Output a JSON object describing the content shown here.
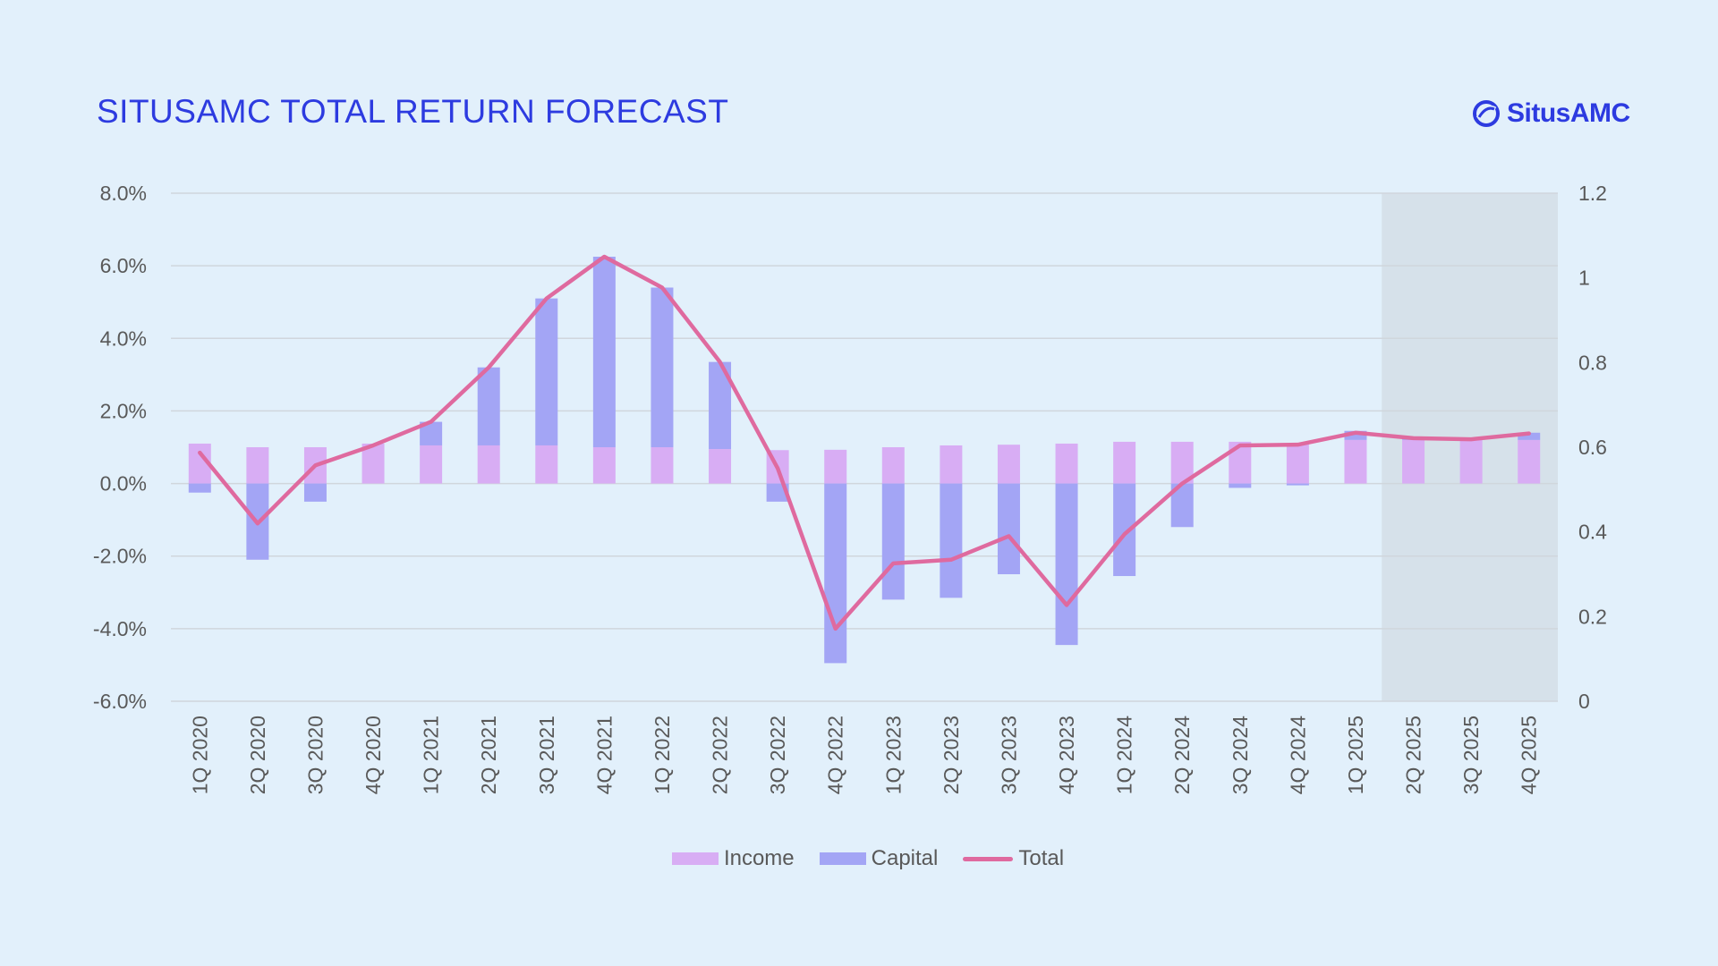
{
  "title": "SITUSAMC TOTAL RETURN FORECAST",
  "logo": {
    "text": "SitusAMC",
    "icon": "situsamc-logo-icon"
  },
  "colors": {
    "background": "#e2f0fb",
    "income": "#d8adf4",
    "capital": "#a3a5f5",
    "total": "#df6a9f",
    "forecast_shade": "#d6e1ea",
    "gridline": "#d0d6dc",
    "title": "#2d3be0"
  },
  "legend": [
    {
      "key": "income",
      "label": "Income"
    },
    {
      "key": "capital",
      "label": "Capital"
    },
    {
      "key": "total",
      "label": "Total"
    }
  ],
  "chart_data": {
    "type": "bar",
    "title": "SITUSAMC TOTAL RETURN FORECAST",
    "xlabel": "",
    "ylabel": "",
    "categories": [
      "1Q 2020",
      "2Q 2020",
      "3Q 2020",
      "4Q 2020",
      "1Q 2021",
      "2Q 2021",
      "3Q 2021",
      "4Q 2021",
      "1Q 2022",
      "2Q 2022",
      "3Q 2022",
      "4Q 2022",
      "1Q 2023",
      "2Q 2023",
      "3Q 2023",
      "4Q 2023",
      "1Q 2024",
      "2Q 2024",
      "3Q 2024",
      "4Q 2024",
      "1Q 2025",
      "2Q 2025",
      "3Q 2025",
      "4Q 2025"
    ],
    "series": [
      {
        "name": "Income",
        "type": "stacked-bar",
        "axis": "left",
        "values": [
          1.1,
          1.0,
          1.0,
          1.1,
          1.05,
          1.05,
          1.05,
          1.0,
          1.0,
          0.95,
          0.92,
          0.93,
          1.0,
          1.05,
          1.07,
          1.1,
          1.15,
          1.15,
          1.15,
          1.1,
          1.2,
          1.2,
          1.2,
          1.2
        ]
      },
      {
        "name": "Capital",
        "type": "stacked-bar",
        "axis": "left",
        "values": [
          -0.25,
          -2.1,
          -0.5,
          0.0,
          0.65,
          2.15,
          4.05,
          5.25,
          4.4,
          2.4,
          -0.5,
          -4.95,
          -3.2,
          -3.15,
          -2.5,
          -4.45,
          -2.55,
          -1.2,
          -0.12,
          -0.05,
          0.25,
          0.05,
          0.05,
          0.2
        ]
      },
      {
        "name": "Total",
        "type": "line",
        "axis": "left",
        "values": [
          0.85,
          -1.1,
          0.5,
          1.05,
          1.7,
          3.2,
          5.1,
          6.25,
          5.4,
          3.35,
          0.42,
          -4.0,
          -2.2,
          -2.1,
          -1.45,
          -3.35,
          -1.4,
          0.0,
          1.05,
          1.07,
          1.4,
          1.25,
          1.22,
          1.38
        ]
      }
    ],
    "forecast_categories": [
      "2Q 2025",
      "3Q 2025",
      "4Q 2025"
    ],
    "y_left": {
      "ylim": [
        -6,
        8
      ],
      "ticks": [
        -6,
        -4,
        -2,
        0,
        2,
        4,
        6,
        8
      ],
      "labels": [
        "-6.0%",
        "-4.0%",
        "-2.0%",
        "0.0%",
        "2.0%",
        "4.0%",
        "6.0%",
        "8.0%"
      ]
    },
    "y_right": {
      "ylim": [
        0,
        1.2
      ],
      "ticks": [
        0,
        0.2,
        0.4,
        0.6,
        0.8,
        1,
        1.2
      ],
      "labels": [
        "0",
        "0.2",
        "0.4",
        "0.6",
        "0.8",
        "1",
        "1.2"
      ]
    },
    "grid": true,
    "legend_position": "bottom-center"
  }
}
